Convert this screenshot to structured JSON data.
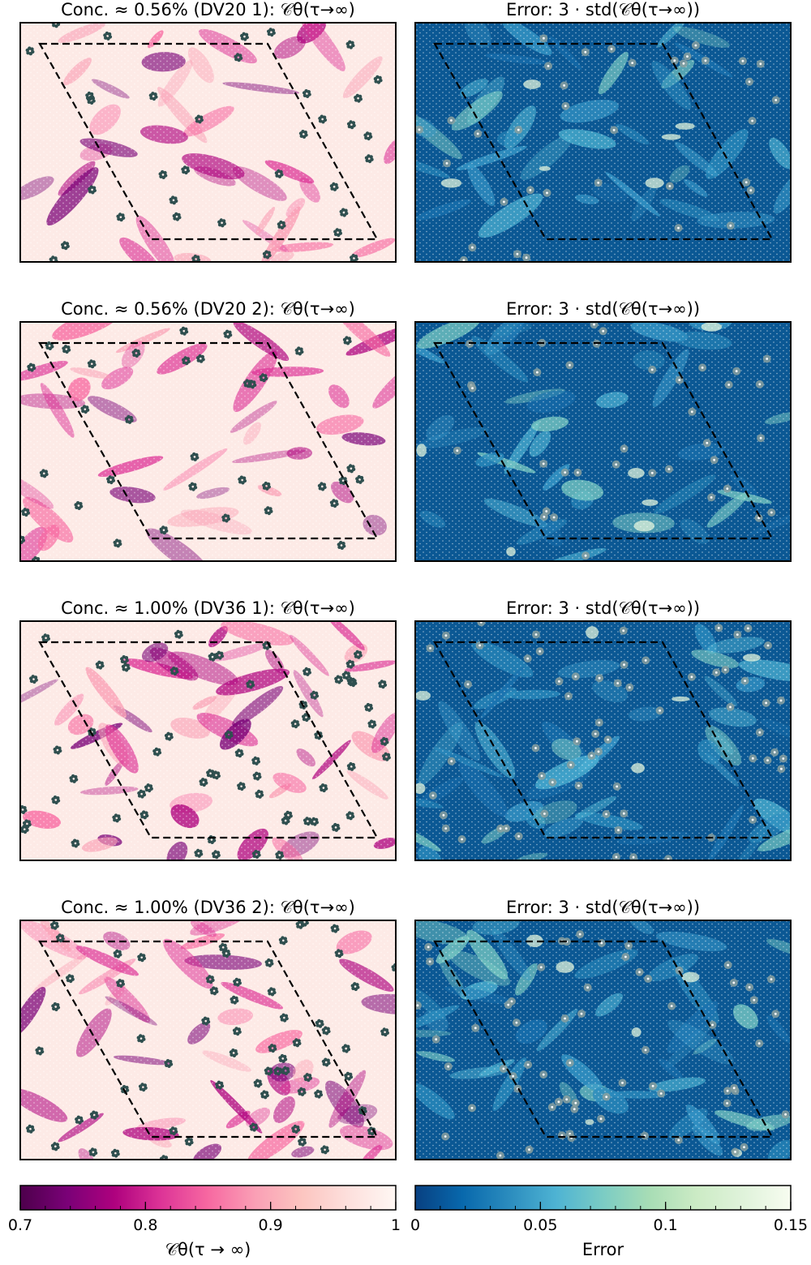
{
  "chart_data": {
    "type": "heatmap",
    "colors": {
      "field": [
        "#4d004b",
        "#7a0177",
        "#ae017e",
        "#dd3497",
        "#f768a1",
        "#fa9fb5",
        "#fcc5c0",
        "#fde0dd",
        "#fff7f3"
      ],
      "error": [
        "#084081",
        "#0868ac",
        "#2b8cbe",
        "#4eb3d3",
        "#7bccc4",
        "#a8ddb5",
        "#ccebc5",
        "#e0f3db",
        "#f7fcf0"
      ],
      "defect_field": "#2f4f4f",
      "defect_error": "#8aa0a0"
    },
    "rows": [
      {
        "field_title": "Conc. ≈ 0.56% (DV20 1): 𝒞θ(τ→∞)",
        "error_title": "Error: 3 · std(𝒞θ(τ→∞))",
        "defect_count": 36,
        "seed": 11
      },
      {
        "field_title": "Conc. ≈ 0.56% (DV20 2): 𝒞θ(τ→∞)",
        "error_title": "Error: 3 · std(𝒞θ(τ→∞))",
        "defect_count": 36,
        "seed": 23
      },
      {
        "field_title": "Conc. ≈ 1.00% (DV36 1): 𝒞θ(τ→∞)",
        "error_title": "Error: 3 · std(𝒞θ(τ→∞))",
        "defect_count": 64,
        "seed": 37
      },
      {
        "field_title": "Conc. ≈ 1.00% (DV36 2): 𝒞θ(τ→∞)",
        "error_title": "Error: 3 · std(𝒞θ(τ→∞))",
        "defect_count": 64,
        "seed": 53
      }
    ],
    "colorbars": [
      {
        "label": "𝒞θ(τ → ∞)",
        "range": [
          0.7,
          1.0
        ],
        "major_ticks": [
          0.7,
          0.8,
          0.9,
          1.0
        ],
        "tick_labels": [
          "0.7",
          "0.8",
          "0.9",
          "1"
        ],
        "minor_step": 0.02
      },
      {
        "label": "Error",
        "range": [
          0,
          0.15
        ],
        "major_ticks": [
          0,
          0.05,
          0.1,
          0.15
        ],
        "tick_labels": [
          "0",
          "0.05",
          "0.1",
          "0.15"
        ],
        "minor_step": 0.01
      }
    ]
  }
}
